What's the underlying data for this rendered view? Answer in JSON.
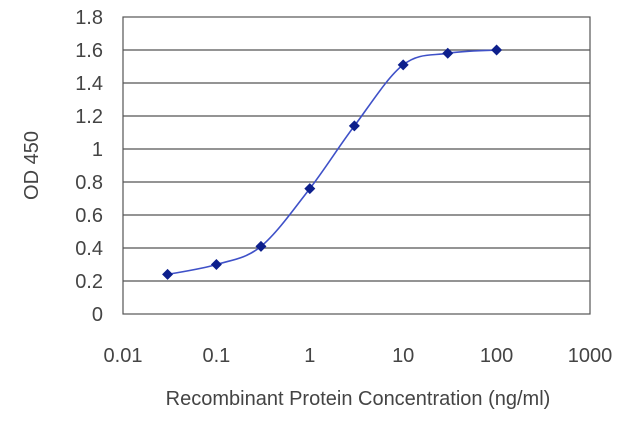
{
  "chart_data": {
    "type": "line",
    "title": "",
    "xlabel": "Recombinant Protein Concentration (ng/ml)",
    "ylabel": "OD 450",
    "x_scale": "log",
    "xlim": [
      0.01,
      1000
    ],
    "ylim": [
      0,
      1.8
    ],
    "x_ticks": [
      "0.01",
      "0.1",
      "1",
      "10",
      "100",
      "1000"
    ],
    "y_ticks": [
      "0",
      "0.2",
      "0.4",
      "0.6",
      "0.8",
      "1",
      "1.2",
      "1.4",
      "1.6",
      "1.8"
    ],
    "grid": "horizontal",
    "series": [
      {
        "x": [
          0.03,
          0.1,
          0.3,
          1,
          3,
          10,
          30,
          100
        ],
        "y": [
          0.24,
          0.3,
          0.41,
          0.76,
          1.14,
          1.51,
          1.58,
          1.6
        ]
      }
    ],
    "colors": {
      "line": "#3f51c8",
      "marker": "#0d1f8c",
      "grid": "#555555",
      "frame": "#555555"
    }
  }
}
